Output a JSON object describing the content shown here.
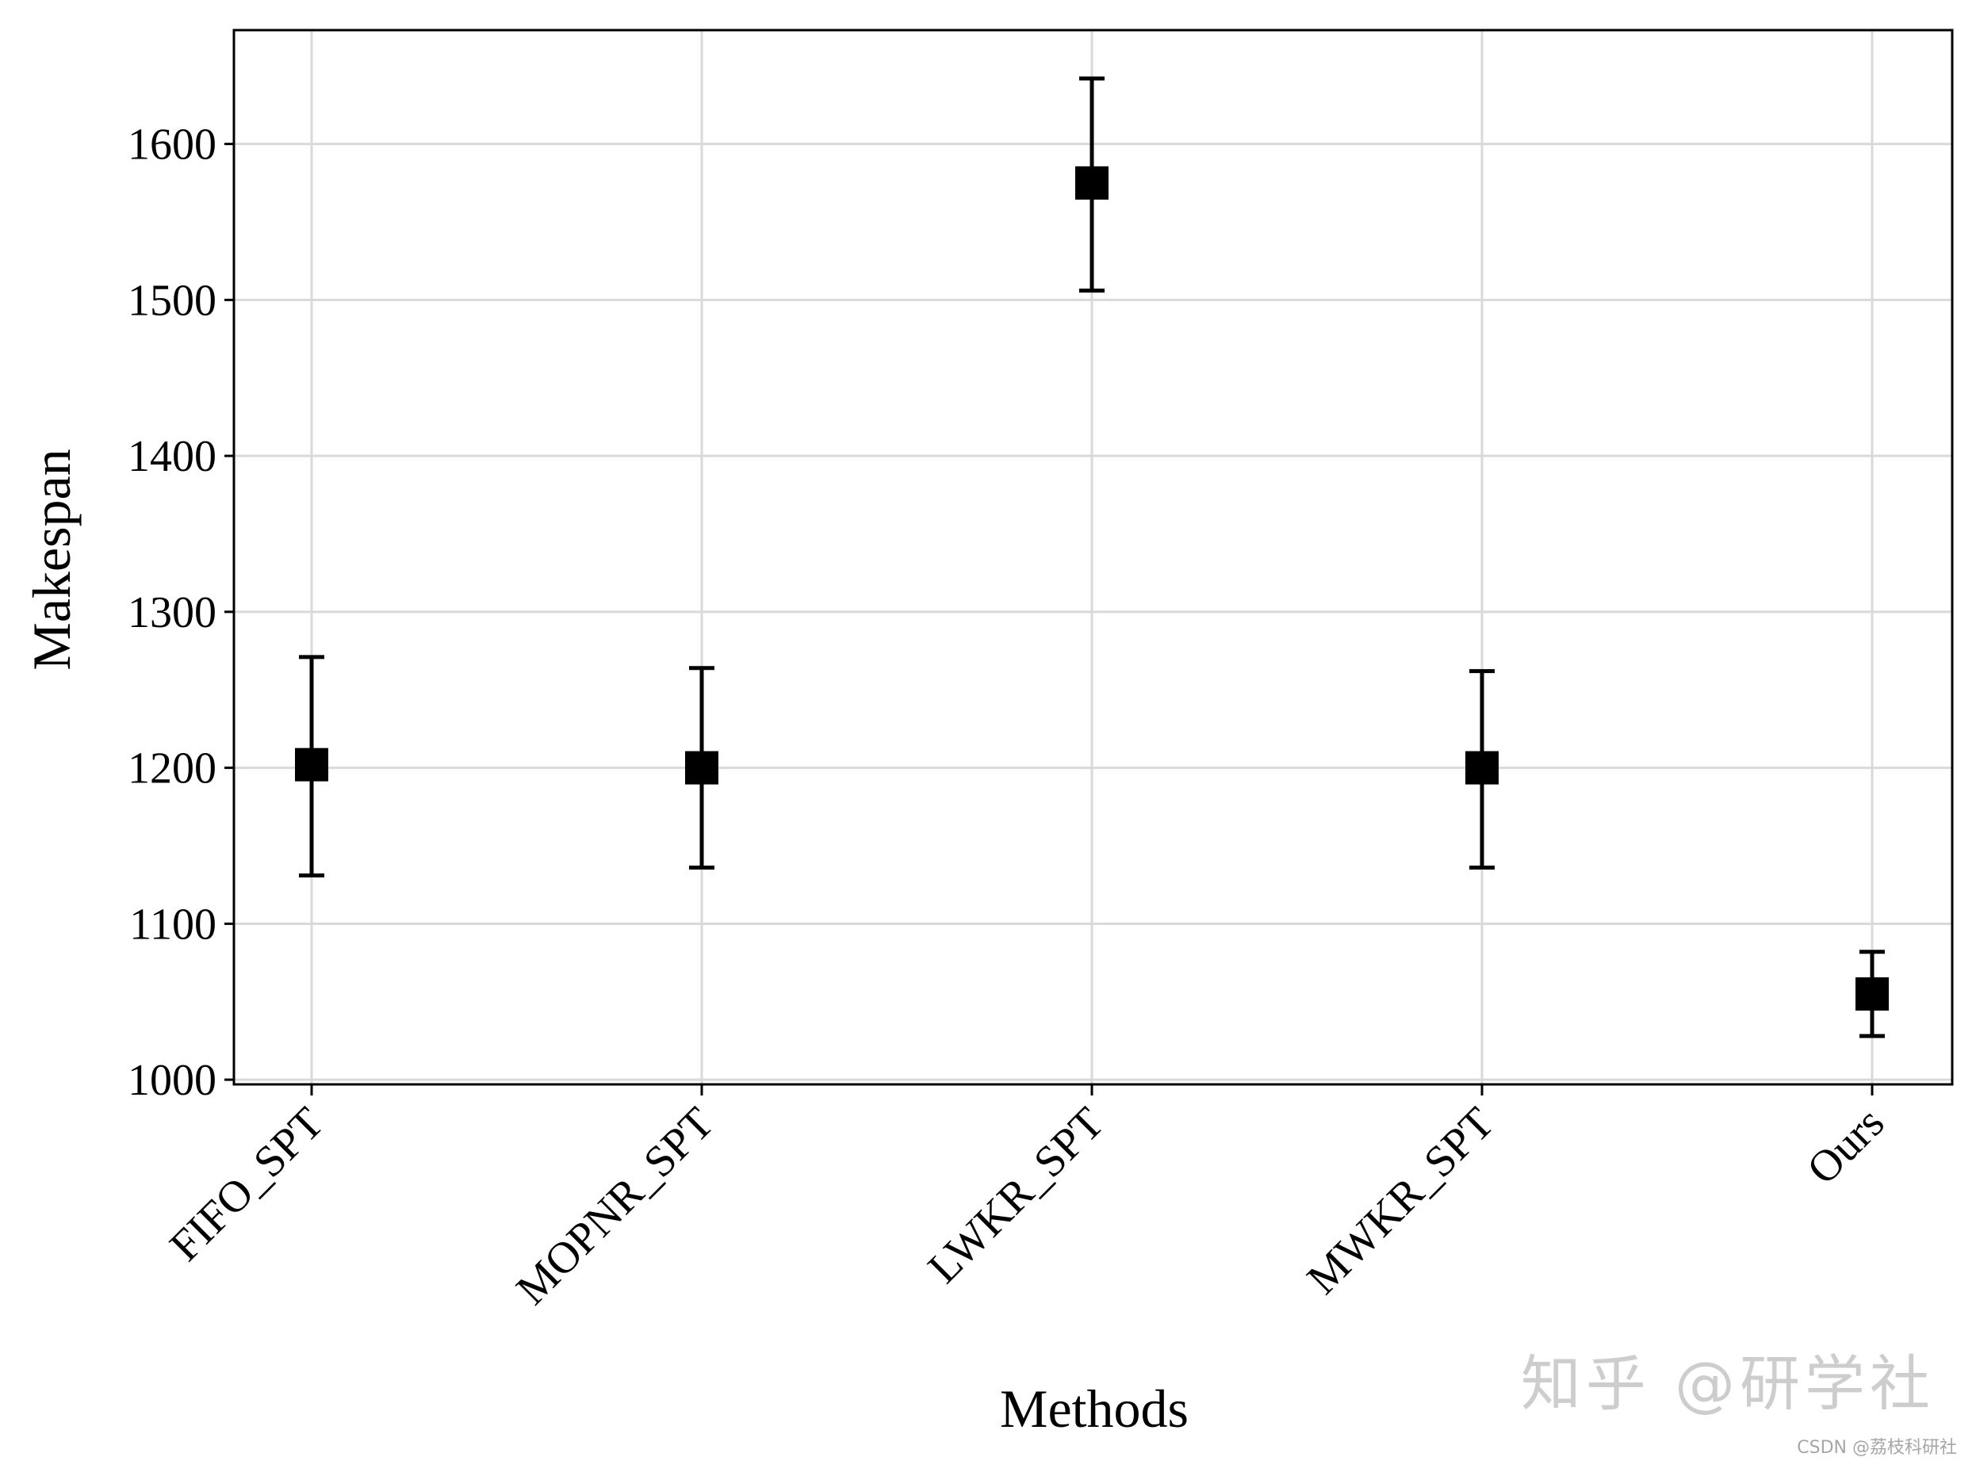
{
  "chart_data": {
    "type": "scatter",
    "title": "",
    "xlabel": "Methods",
    "ylabel": "Makespan",
    "categories": [
      "FIFO_SPT",
      "MOPNR_SPT",
      "LWKR_SPT",
      "MWKR_SPT",
      "Ours"
    ],
    "values": [
      1202,
      1200,
      1575,
      1200,
      1055
    ],
    "error_low": [
      1131,
      1136,
      1506,
      1136,
      1028
    ],
    "error_high": [
      1271,
      1264,
      1642,
      1262,
      1082
    ],
    "yticks": [
      1000,
      1100,
      1200,
      1300,
      1400,
      1500,
      1600
    ],
    "ylim": [
      997,
      1673
    ],
    "grid": true,
    "marker": "square",
    "color": "#000000",
    "grid_color": "#d9d9d9"
  },
  "watermark": {
    "text": "知乎 @研学社",
    "source": "CSDN @荔枝科研社"
  }
}
